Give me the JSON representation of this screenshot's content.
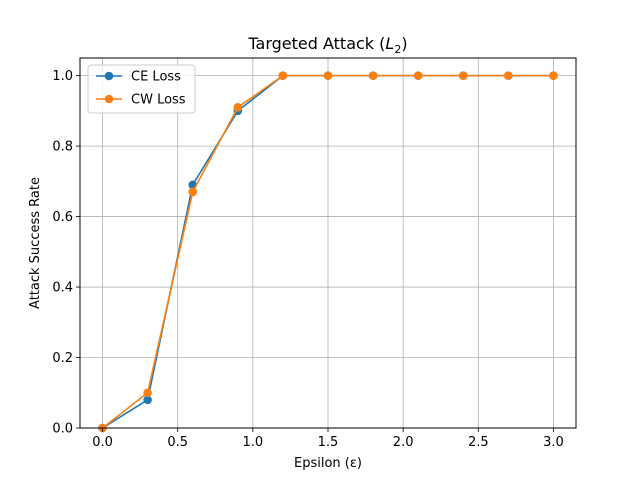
{
  "chart_data": {
    "type": "line",
    "title": "Targeted Attack (L2)",
    "title_parts": {
      "prefix": "Targeted Attack (",
      "var": "L",
      "sub": "2",
      "suffix": ")"
    },
    "xlabel": "Epsilon (ε)",
    "ylabel": "Attack Success Rate",
    "xlim": [
      -0.15,
      3.15
    ],
    "ylim": [
      0.0,
      1.05
    ],
    "xticks": [
      0.0,
      0.5,
      1.0,
      1.5,
      2.0,
      2.5,
      3.0
    ],
    "xtick_labels": [
      "0.0",
      "0.5",
      "1.0",
      "1.5",
      "2.0",
      "2.5",
      "3.0"
    ],
    "yticks": [
      0.0,
      0.2,
      0.4,
      0.6,
      0.8,
      1.0
    ],
    "ytick_labels": [
      "0.0",
      "0.2",
      "0.4",
      "0.6",
      "0.8",
      "1.0"
    ],
    "grid": true,
    "legend": "top-left",
    "x": [
      0.0,
      0.3,
      0.6,
      0.9,
      1.2,
      1.5,
      1.8,
      2.1,
      2.4,
      2.7,
      3.0
    ],
    "series": [
      {
        "name": "CE Loss",
        "color": "#1f77b4",
        "marker": "circle",
        "values": [
          0.0,
          0.08,
          0.69,
          0.9,
          1.0,
          1.0,
          1.0,
          1.0,
          1.0,
          1.0,
          1.0
        ]
      },
      {
        "name": "CW Loss",
        "color": "#ff7f0e",
        "marker": "circle",
        "values": [
          0.0,
          0.1,
          0.67,
          0.91,
          1.0,
          1.0,
          1.0,
          1.0,
          1.0,
          1.0,
          1.0
        ]
      }
    ]
  }
}
